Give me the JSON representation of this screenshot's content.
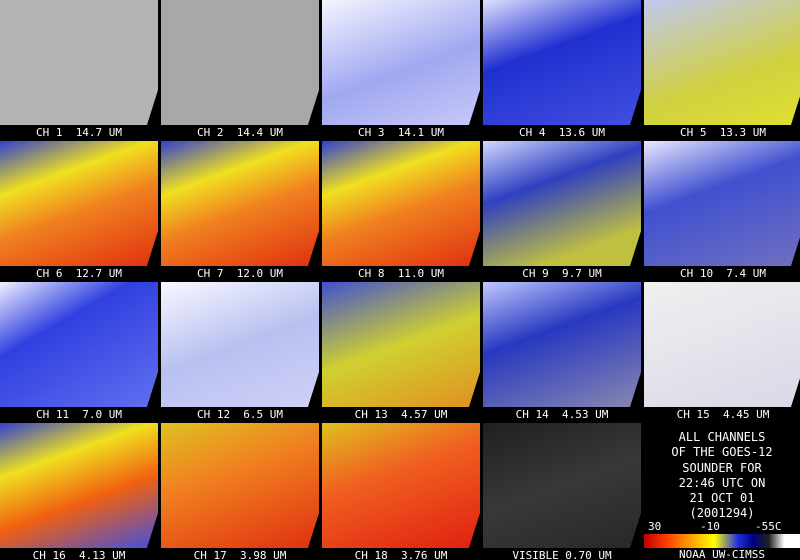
{
  "panels": [
    {
      "label": "CH 1  14.7 UM"
    },
    {
      "label": "CH 2  14.4 UM"
    },
    {
      "label": "CH 3  14.1 UM"
    },
    {
      "label": "CH 4  13.6 UM"
    },
    {
      "label": "CH 5  13.3 UM"
    },
    {
      "label": "CH 6  12.7 UM"
    },
    {
      "label": "CH 7  12.0 UM"
    },
    {
      "label": "CH 8  11.0 UM"
    },
    {
      "label": "CH 9  9.7 UM"
    },
    {
      "label": "CH 10  7.4 UM"
    },
    {
      "label": "CH 11  7.0 UM"
    },
    {
      "label": "CH 12  6.5 UM"
    },
    {
      "label": "CH 13  4.57 UM"
    },
    {
      "label": "CH 14  4.53 UM"
    },
    {
      "label": "CH 15  4.45 UM"
    },
    {
      "label": "CH 16  4.13 UM"
    },
    {
      "label": "CH 17  3.98 UM"
    },
    {
      "label": "CH 18  3.76 UM"
    },
    {
      "label": "VISIBLE 0.70 UM"
    }
  ],
  "info": {
    "lines": [
      "ALL CHANNELS",
      "OF THE GOES-12",
      "SOUNDER FOR",
      "22:46 UTC ON",
      "21 OCT 01",
      "(2001294)"
    ]
  },
  "colorbar": {
    "labels": [
      "30",
      "-10",
      "-55C"
    ]
  },
  "credit": "NOAA UW-CIMSS"
}
